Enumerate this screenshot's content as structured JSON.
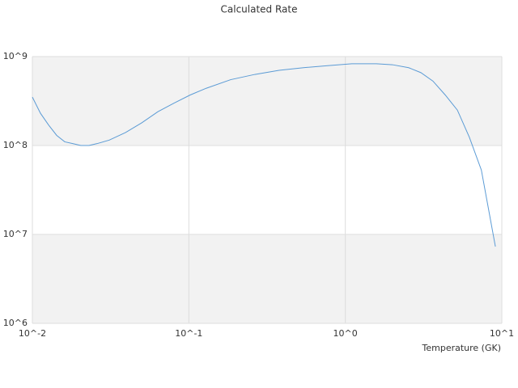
{
  "chart_data": {
    "type": "line",
    "title": "Calculated Rate",
    "x_label": "Temperature (GK)",
    "x": [
      0.01,
      0.01127,
      0.0127,
      0.0143,
      0.0161,
      0.0181,
      0.0204,
      0.023,
      0.0259,
      0.031,
      0.0394,
      0.05,
      0.0634,
      0.0804,
      0.102,
      0.129,
      0.185,
      0.264,
      0.377,
      0.54,
      0.77,
      1.1,
      1.58,
      2.0,
      2.54,
      3.04,
      3.63,
      4.35,
      5.2,
      6.2,
      7.4,
      9.1
    ],
    "series": [
      {
        "color": "#5b9bd5",
        "values": [
          350000000,
          230000000,
          170000000,
          130000000,
          110000000,
          105000000,
          100000000,
          100000000,
          105000000,
          115000000,
          140000000,
          180000000,
          240000000,
          300000000,
          370000000,
          440000000,
          550000000,
          630000000,
          700000000,
          750000000,
          790000000,
          830000000,
          830000000,
          810000000,
          750000000,
          660000000,
          530000000,
          370000000,
          250000000,
          124000000,
          53000000,
          7300000
        ]
      }
    ],
    "xlim": [
      0.01,
      10
    ],
    "ylim": [
      1000000,
      1000000000
    ],
    "x_log": true,
    "y_log": true,
    "xticks": [
      {
        "value": 0.01,
        "label": "10^-2"
      },
      {
        "value": 0.1,
        "label": "10^-1"
      },
      {
        "value": 1,
        "label": "10^0"
      },
      {
        "value": 10,
        "label": "10^1"
      }
    ],
    "yticks": [
      {
        "value": 1000000,
        "label": "10^6"
      },
      {
        "value": 10000000,
        "label": "10^7"
      },
      {
        "value": 100000000,
        "label": "10^8"
      },
      {
        "value": 1000000000,
        "label": "10^9"
      }
    ],
    "band_color": "#f2f2f2",
    "grid": true
  }
}
